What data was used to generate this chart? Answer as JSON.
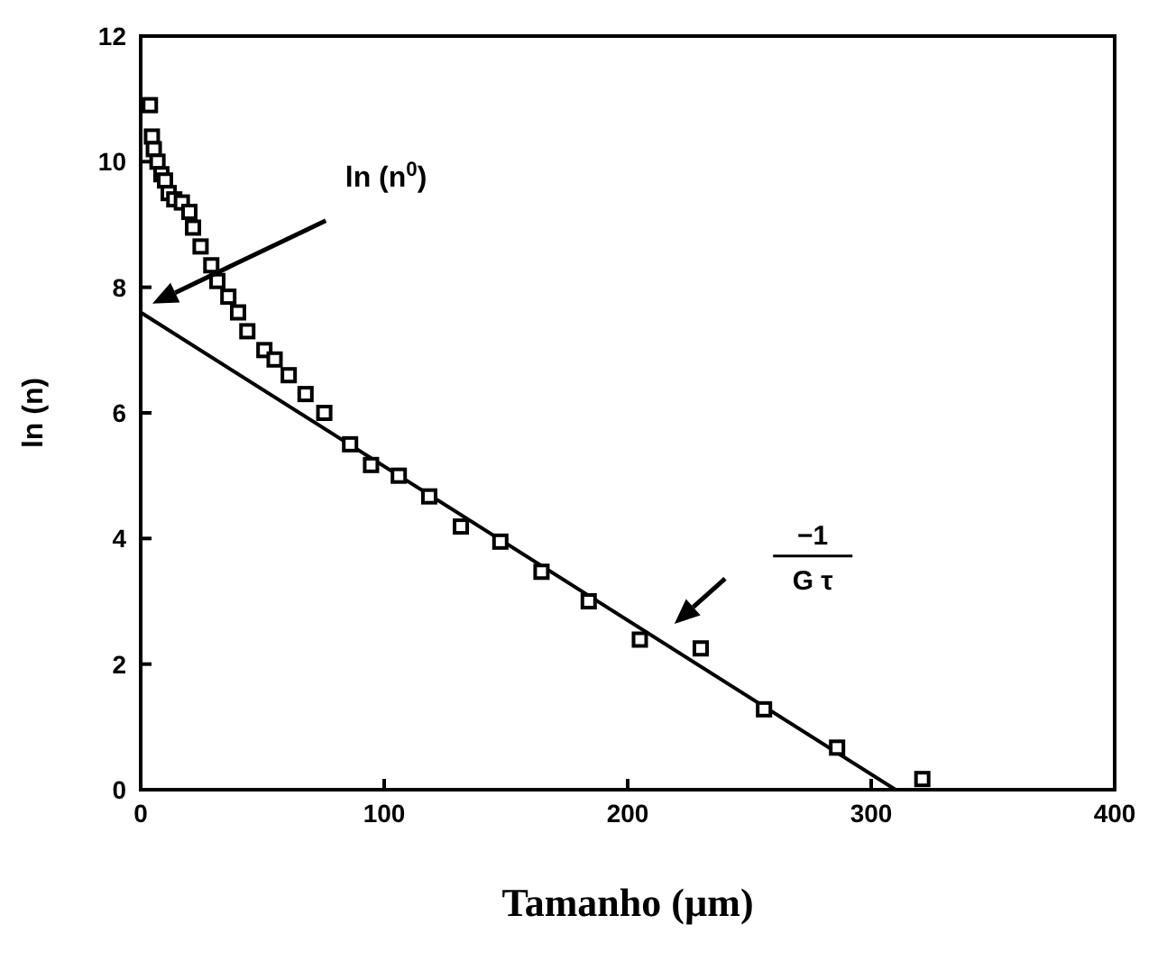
{
  "chart_data": {
    "type": "scatter",
    "xlabel": "Tamanho (µm)",
    "ylabel": "ln (n)",
    "xlim": [
      0,
      400
    ],
    "xticks": [
      0,
      100,
      200,
      300,
      400
    ],
    "ylim": [
      0,
      12
    ],
    "yticks": [
      0,
      2,
      4,
      6,
      8,
      10,
      12
    ],
    "marker": "square",
    "series": [
      {
        "color": "#000000",
        "x": [
          3.8,
          4.6,
          5.4,
          6.9,
          8.5,
          10,
          11.5,
          13.8,
          16.9,
          20,
          21.5,
          24.6,
          29,
          31.5,
          36,
          40,
          43.8,
          50.8,
          55,
          60.8,
          67.7,
          75.4,
          86,
          94.6,
          106,
          118.5,
          131.5,
          147.7,
          164.6,
          184,
          205,
          230,
          256,
          286,
          321
        ],
        "values": [
          10.9,
          10.4,
          10.2,
          10.0,
          9.8,
          9.7,
          9.5,
          9.4,
          9.35,
          9.2,
          8.95,
          8.65,
          8.35,
          8.1,
          7.85,
          7.6,
          7.3,
          7.0,
          6.85,
          6.6,
          6.3,
          6.0,
          5.5,
          5.17,
          5.0,
          4.67,
          4.19,
          3.95,
          3.47,
          3.0,
          2.39,
          2.25,
          1.28,
          0.67,
          0.17
        ]
      },
      {
        "type": "line",
        "color": "#000000",
        "x": [
          0,
          310
        ],
        "values": [
          7.6,
          0
        ],
        "marker": "none",
        "line_style": "solid"
      }
    ],
    "annotations": [
      "ln (n$^{0}$)",
      "−1",
      "G τ"
    ]
  }
}
